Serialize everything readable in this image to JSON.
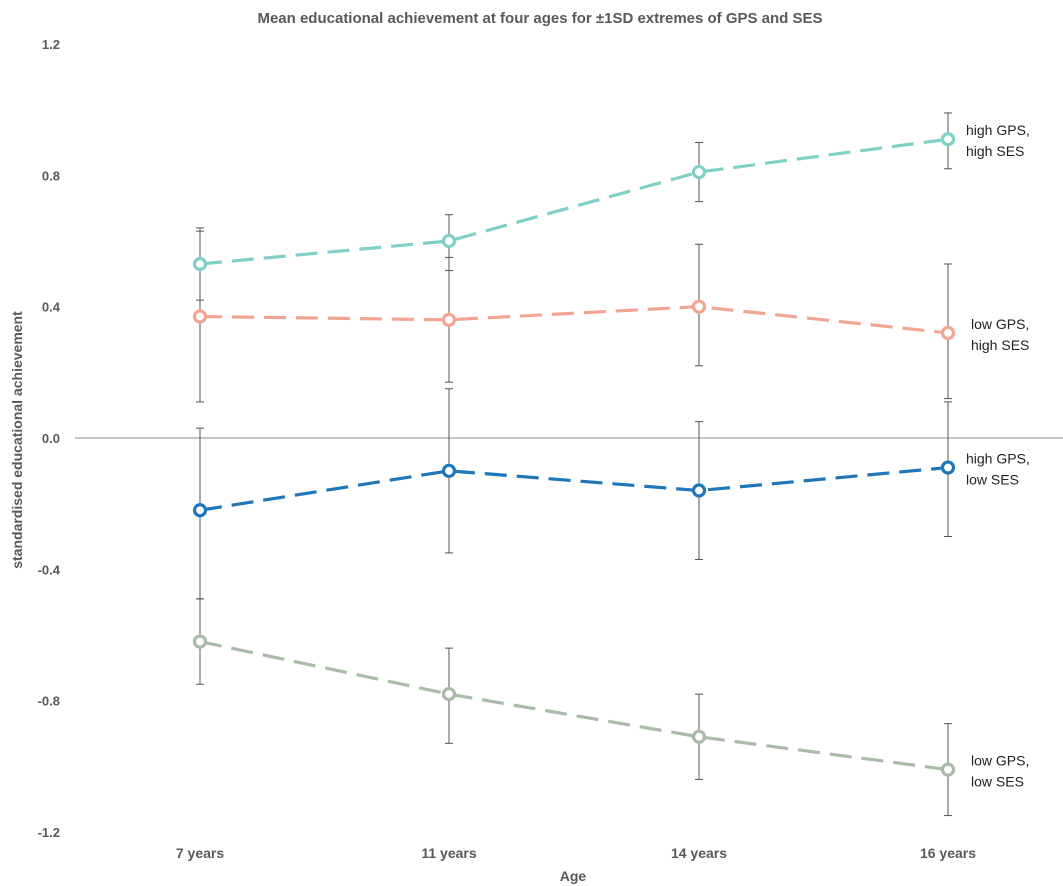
{
  "chart_data": {
    "type": "line",
    "title": "Mean educational achievement at four ages for ±1SD extremes of GPS and SES",
    "xlabel": "Age",
    "ylabel": "standardised educational achievement",
    "categories": [
      "7 years",
      "11 years",
      "14 years",
      "16 years"
    ],
    "ylim": [
      -1.2,
      1.2
    ],
    "yticks": [
      "1.2",
      "0.8",
      "0.4",
      "0.0",
      "-0.4",
      "-0.8",
      "-1.2"
    ],
    "grid": false,
    "zero_line": true,
    "series": [
      {
        "name": "high GPS, high SES",
        "label_lines": [
          "high GPS,",
          "high SES"
        ],
        "color": "#7fd1c7",
        "values": [
          0.53,
          0.6,
          0.81,
          0.91
        ],
        "err_low": [
          0.42,
          0.51,
          0.72,
          0.82
        ],
        "err_high": [
          0.64,
          0.68,
          0.9,
          0.99
        ]
      },
      {
        "name": "low GPS, high SES",
        "label_lines": [
          "low GPS,",
          "high SES"
        ],
        "color": "#f4a592",
        "values": [
          0.37,
          0.36,
          0.4,
          0.32
        ],
        "err_low": [
          0.11,
          0.17,
          0.22,
          0.12
        ],
        "err_high": [
          0.63,
          0.55,
          0.59,
          0.53
        ]
      },
      {
        "name": "high GPS, low SES",
        "label_lines": [
          "high GPS,",
          "low SES"
        ],
        "color": "#1f77b9",
        "values": [
          -0.22,
          -0.1,
          -0.16,
          -0.09
        ],
        "err_low": [
          -0.49,
          -0.35,
          -0.37,
          -0.3
        ],
        "err_high": [
          0.03,
          0.15,
          0.05,
          0.11
        ]
      },
      {
        "name": "low GPS, low SES",
        "label_lines": [
          "low GPS,",
          "low SES"
        ],
        "color": "#abbbaa",
        "values": [
          -0.62,
          -0.78,
          -0.91,
          -1.01
        ],
        "err_low": [
          -0.75,
          -0.93,
          -1.04,
          -1.15
        ],
        "err_high": [
          -0.49,
          -0.64,
          -0.78,
          -0.87
        ]
      }
    ]
  }
}
